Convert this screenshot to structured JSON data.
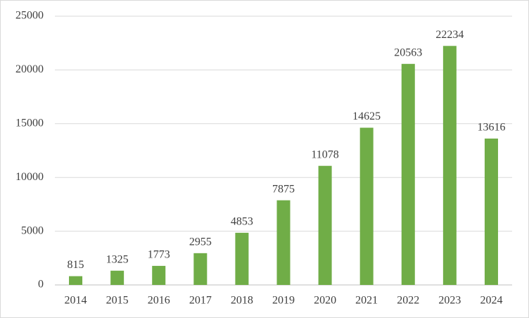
{
  "chart_data": {
    "type": "bar",
    "categories": [
      "2014",
      "2015",
      "2016",
      "2017",
      "2018",
      "2019",
      "2020",
      "2021",
      "2022",
      "2023",
      "2024"
    ],
    "values": [
      815,
      1325,
      1773,
      2955,
      4853,
      7875,
      11078,
      14625,
      20563,
      22234,
      13616
    ],
    "color": "#70ad47",
    "ylim": [
      0,
      25000
    ],
    "yticks": [
      0,
      5000,
      10000,
      15000,
      20000,
      25000
    ],
    "grid": true
  }
}
